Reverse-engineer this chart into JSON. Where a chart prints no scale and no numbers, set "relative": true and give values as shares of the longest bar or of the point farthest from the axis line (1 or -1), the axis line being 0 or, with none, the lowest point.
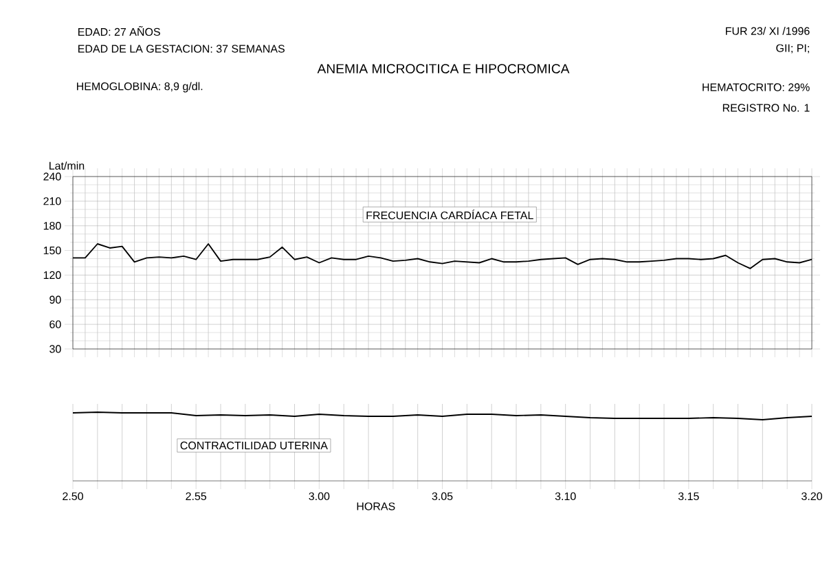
{
  "chart_data": [
    {
      "type": "line",
      "title": "ANEMIA MICROCITICA E HIPOCROMICA",
      "ylabel": "Lat/min",
      "annotations": [
        "EDAD: 27 AÑOS",
        "EDAD DE LA GESTACION: 37 SEMANAS",
        "FUR 23/ XI /1996",
        "GII; PI;",
        "HEMOGLOBINA: 8,9 g/dl.",
        "HEMATOCRITO: 29%",
        "REGISTRO No. 1",
        "FRECUENCIA CARDÍACA FETAL"
      ],
      "categories": [
        null,
        null,
        null,
        null,
        null,
        null,
        null,
        null,
        null,
        null,
        null,
        null,
        null,
        null,
        null,
        null,
        null,
        null,
        null,
        null,
        null,
        null,
        null,
        null,
        null,
        null,
        null,
        null,
        null,
        null,
        null,
        null,
        null,
        null,
        null,
        null,
        null,
        null,
        null,
        null,
        null,
        null,
        null,
        null,
        null,
        null,
        null,
        null,
        null,
        null,
        null,
        null,
        null,
        null,
        null,
        null,
        null,
        null,
        null,
        null,
        null
      ],
      "series": [
        {
          "color": "#000000",
          "values": [
            141,
            141,
            158,
            153,
            155,
            136,
            141,
            142,
            141,
            143,
            139,
            158,
            137,
            139,
            139,
            139,
            142,
            154,
            139,
            142,
            135,
            141,
            139,
            139,
            143,
            141,
            137,
            138,
            140,
            136,
            134,
            137,
            136,
            135,
            140,
            136,
            136,
            137,
            139,
            140,
            141,
            133,
            139,
            140,
            139,
            136,
            136,
            137,
            138,
            140,
            140,
            139,
            140,
            144,
            135,
            128,
            139,
            140,
            136,
            135,
            139
          ]
        }
      ],
      "ylim": [
        30,
        240
      ],
      "yticks": [
        30,
        60,
        90,
        120,
        150,
        180,
        210,
        240
      ],
      "grid": true,
      "tick_labels": "y",
      "marker": "none"
    },
    {
      "type": "line",
      "xlabel": "HORAS",
      "relative": true,
      "annotations": [
        "CONTRACTILIDAD UTERINA"
      ],
      "categories": [
        "2.50",
        null,
        null,
        null,
        null,
        "2.55",
        null,
        null,
        null,
        null,
        "3.00",
        null,
        null,
        null,
        null,
        "3.05",
        null,
        null,
        null,
        null,
        "3.10",
        null,
        null,
        null,
        null,
        "3.15",
        null,
        null,
        null,
        null,
        "3.20"
      ],
      "series": [
        {
          "color": "#000000",
          "values": [
            0.99,
            1,
            0.99,
            0.99,
            0.99,
            0.95,
            0.96,
            0.95,
            0.96,
            0.94,
            0.97,
            0.95,
            0.94,
            0.94,
            0.96,
            0.94,
            0.97,
            0.97,
            0.95,
            0.96,
            0.94,
            0.92,
            0.91,
            0.91,
            0.91,
            0.91,
            0.92,
            0.91,
            0.89,
            0.92,
            0.94
          ]
        }
      ],
      "grid": true,
      "tick_labels": "x",
      "marker": "none"
    }
  ]
}
